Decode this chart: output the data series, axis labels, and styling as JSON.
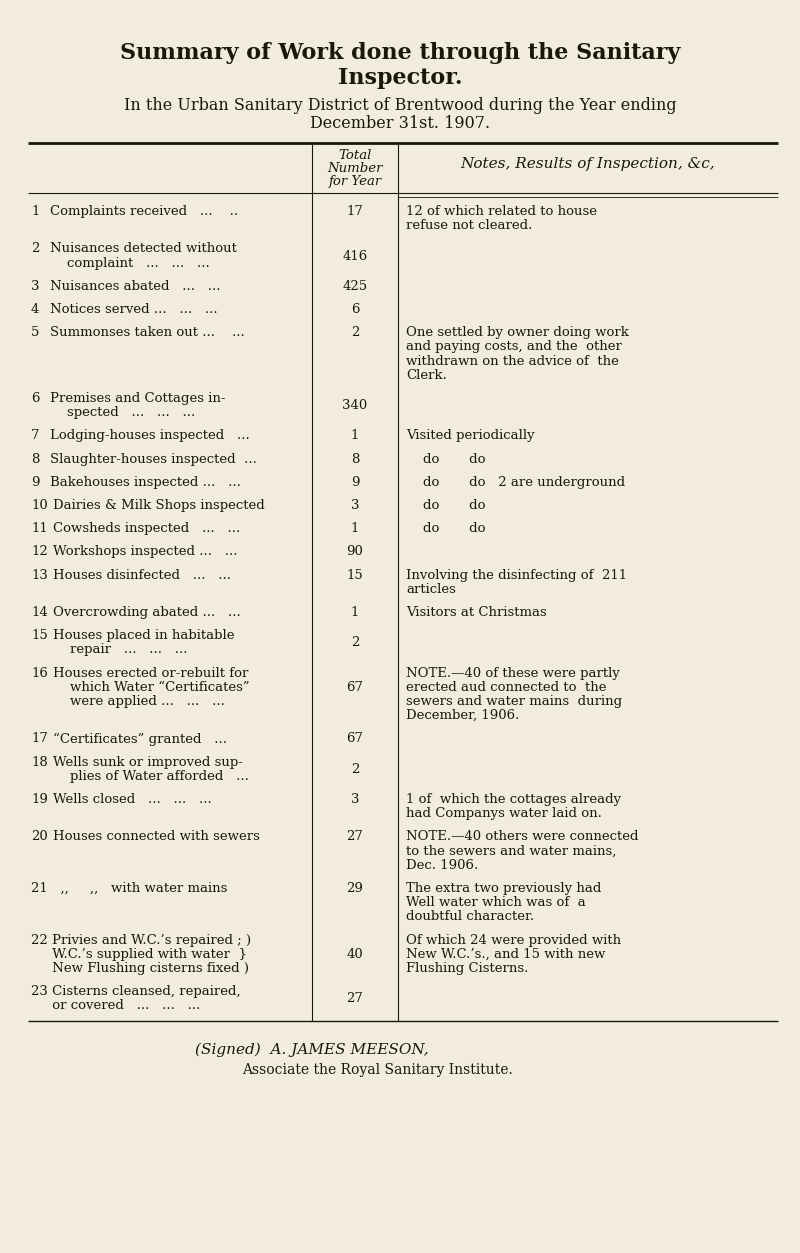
{
  "bg_color": "#f2ece0",
  "title1": "Summary of Work done through the Sanitary",
  "title2": "Inspector.",
  "subtitle1": "In the Urban Sanitary District of Brentwood during the Year ending",
  "subtitle2": "December 31st. 1907.",
  "col_header_total": [
    "Total",
    "Number",
    "for Year"
  ],
  "col_header_notes": "Notes, Results of Inspection, &c,",
  "rows": [
    {
      "num": "1",
      "desc": [
        "Complaints received   ...    .."
      ],
      "value": "17",
      "notes": [
        "12 of which related to house",
        "refuse not cleared."
      ]
    },
    {
      "num": "2",
      "desc": [
        "Nuisances detected without",
        "    complaint   ...   ...   ..."
      ],
      "value": "416",
      "notes": []
    },
    {
      "num": "3",
      "desc": [
        "Nuisances abated   ...   ..."
      ],
      "value": "425",
      "notes": []
    },
    {
      "num": "4",
      "desc": [
        "Notices served ...   ...   ..."
      ],
      "value": "6",
      "notes": []
    },
    {
      "num": "5",
      "desc": [
        "Summonses taken out ...    ..."
      ],
      "value": "2",
      "notes": [
        "One settled by owner doing work",
        "and paying costs, and the  other",
        "withdrawn on the advice of  the",
        "Clerk."
      ]
    },
    {
      "num": "6",
      "desc": [
        "Premises and Cottages in-",
        "    spected   ...   ...   ..."
      ],
      "value": "340",
      "notes": []
    },
    {
      "num": "7",
      "desc": [
        "Lodging-houses inspected   ..."
      ],
      "value": "1",
      "notes": [
        "Visited periodically"
      ]
    },
    {
      "num": "8",
      "desc": [
        "Slaughter-houses inspected  ..."
      ],
      "value": "8",
      "notes": [
        "    do       do"
      ]
    },
    {
      "num": "9",
      "desc": [
        "Bakehouses inspected ...   ..."
      ],
      "value": "9",
      "notes": [
        "    do       do   2 are underground"
      ]
    },
    {
      "num": "10",
      "desc": [
        "Dairies & Milk Shops inspected"
      ],
      "value": "3",
      "notes": [
        "    do       do"
      ]
    },
    {
      "num": "11",
      "desc": [
        "Cowsheds inspected   ...   ..."
      ],
      "value": "1",
      "notes": [
        "    do       do"
      ]
    },
    {
      "num": "12",
      "desc": [
        "Workshops inspected ...   ..."
      ],
      "value": "90",
      "notes": []
    },
    {
      "num": "13",
      "desc": [
        "Houses disinfected   ...   ..."
      ],
      "value": "15",
      "notes": [
        "Involving the disinfecting of  211",
        "articles"
      ]
    },
    {
      "num": "14",
      "desc": [
        "Overcrowding abated ...   ..."
      ],
      "value": "1",
      "notes": [
        "Visitors at Christmas"
      ]
    },
    {
      "num": "15",
      "desc": [
        "Houses placed in habitable",
        "    repair   ...   ...   ..."
      ],
      "value": "2",
      "notes": []
    },
    {
      "num": "16",
      "desc": [
        "Houses erected or-rebuilt for",
        "    which Water “Certificates”",
        "    were applied ...   ...   ..."
      ],
      "value": "67",
      "notes": [
        "NOTE.—40 of these were partly",
        "erected aud connected to  the",
        "sewers and water mains  during",
        "December, 1906."
      ]
    },
    {
      "num": "17",
      "desc": [
        "“Certificates” granted   ..."
      ],
      "value": "67",
      "notes": []
    },
    {
      "num": "18",
      "desc": [
        "Wells sunk or improved sup-",
        "    plies of Water afforded   ..."
      ],
      "value": "2",
      "notes": []
    },
    {
      "num": "19",
      "desc": [
        "Wells closed   ...   ...   ..."
      ],
      "value": "3",
      "notes": [
        "1 of  which the cottages already",
        "had Companys water laid on."
      ]
    },
    {
      "num": "20",
      "desc": [
        "Houses connected with sewers"
      ],
      "value": "27",
      "notes": [
        "NOTE.—40 others were connected",
        "to the sewers and water mains,",
        "Dec. 1906."
      ]
    },
    {
      "num": "21",
      "desc": [
        "21   ,,     ,,   with water mains"
      ],
      "value": "29",
      "notes": [
        "The extra two previously had",
        "Well water which was of  a",
        "doubtful character."
      ]
    },
    {
      "num": "22",
      "desc": [
        "22 Privies and W.C.’s repaired ; )",
        "     W.C.’s supplied with water  }",
        "     New Flushing cisterns fixed )"
      ],
      "value": "40",
      "notes": [
        "Of which 24 were provided with",
        "New W.C.’s., and 15 with new",
        "Flushing Cisterns."
      ]
    },
    {
      "num": "23",
      "desc": [
        "23 Cisterns cleansed, repaired,",
        "     or covered   ...   ...   ..."
      ],
      "value": "27",
      "notes": []
    }
  ],
  "signed_line1": "(Signed)  A. JAMES MEESON,",
  "signed_line2": "Associate the Royal Sanitary Institute."
}
